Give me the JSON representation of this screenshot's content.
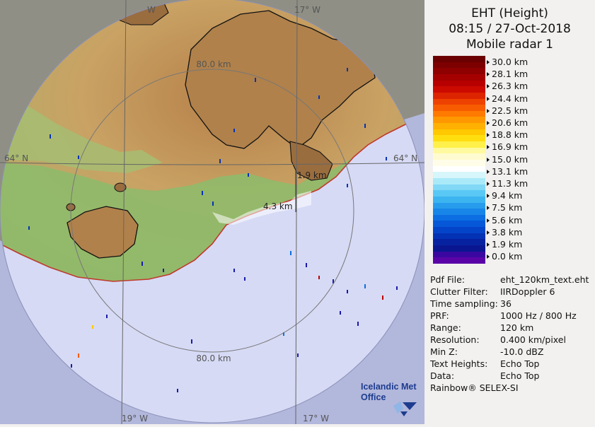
{
  "header": {
    "product": "EHT (Height)",
    "datetime": "08:15 / 27-Oct-2018",
    "radar": "Mobile radar 1"
  },
  "legend": {
    "unit": "km",
    "ticks": [
      "30.0 km",
      "28.1 km",
      "26.3 km",
      "24.4 km",
      "22.5 km",
      "20.6 km",
      "18.8 km",
      "16.9 km",
      "15.0 km",
      "13.1 km",
      "11.3 km",
      "9.4 km",
      "7.5 km",
      "5.6 km",
      "3.8 km",
      "1.9 km",
      "0.0 km"
    ],
    "colors": [
      "#6b0000",
      "#7d0000",
      "#8f0000",
      "#a40000",
      "#b80000",
      "#cc0a00",
      "#dd2400",
      "#ee4200",
      "#f85c00",
      "#ff7a00",
      "#ff9800",
      "#ffb000",
      "#ffc800",
      "#ffde10",
      "#fff04a",
      "#fffaa0",
      "#fffbd0",
      "#fffde8",
      "#ffffff",
      "#d6f6fb",
      "#aaeaf8",
      "#80d8f6",
      "#5ac8f4",
      "#3cb4f0",
      "#279cec",
      "#1886e8",
      "#0c6ee2",
      "#0658d8",
      "#0444c8",
      "#0432b4",
      "#0622a0",
      "#0a1690",
      "#3a08a0",
      "#5a04a8"
    ]
  },
  "map": {
    "range_rings": [
      {
        "label": "80.0 km"
      },
      {
        "label": "80.0 km"
      }
    ],
    "meridians": [
      {
        "label": "19° W"
      },
      {
        "label": "17° W"
      },
      {
        "label": "W"
      },
      {
        "label": "17° W"
      }
    ],
    "parallel": {
      "label_left": "64° N",
      "label_right": "64° N"
    },
    "center_labels": [
      {
        "label": "1.9 km"
      },
      {
        "label": "4.3 km"
      }
    ],
    "colors": {
      "sea": "#d6daf5",
      "outside": "#b2b7dc",
      "lowland": "#8fba6a",
      "highland": "#c49a5a",
      "glacier": "#a77a45",
      "coast": "#c0392b"
    }
  },
  "info": [
    {
      "key": "Pdf File:",
      "value": "eht_120km_text.eht"
    },
    {
      "key": "Clutter Filter:",
      "value": "IIRDoppler 6"
    },
    {
      "key": "Time sampling:",
      "value": "36"
    },
    {
      "key": "PRF:",
      "value": "1000 Hz / 800 Hz"
    },
    {
      "key": "Range:",
      "value": "120 km"
    },
    {
      "key": "Resolution:",
      "value": "0.400 km/pixel"
    },
    {
      "key": "Min Z:",
      "value": "-10.0 dBZ"
    },
    {
      "key": "Text Heights:",
      "value": "Echo Top"
    },
    {
      "key": "Data:",
      "value": "Echo Top"
    }
  ],
  "footer": "Rainbow® SELEX-SI",
  "logo": {
    "line1": "Icelandic Met",
    "line2": "Office"
  }
}
